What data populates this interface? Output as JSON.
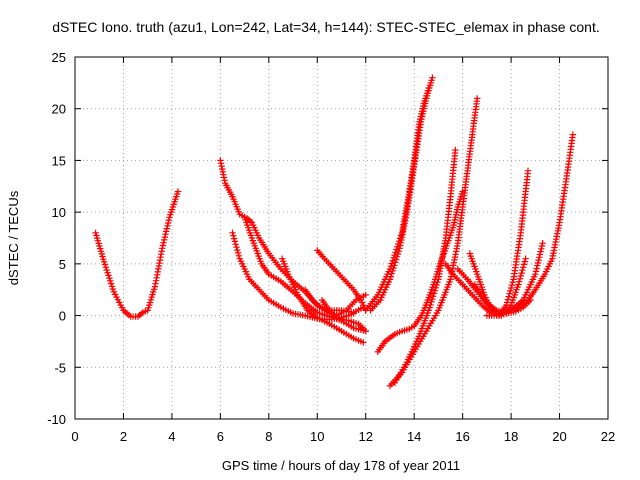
{
  "chart_data": {
    "type": "scatter",
    "title": "dSTEC Iono. truth (azu1, Lon=242, Lat=34, h=144): STEC-STEC_elemax in phase cont.",
    "xlabel": "GPS time / hours of day 178 of year 2011",
    "ylabel": "dSTEC  / TECUs",
    "xlim": [
      0,
      22
    ],
    "ylim": [
      -10,
      25
    ],
    "xticks": [
      0,
      2,
      4,
      6,
      8,
      10,
      12,
      14,
      16,
      18,
      20,
      22
    ],
    "yticks": [
      -10,
      -5,
      0,
      5,
      10,
      15,
      20,
      25
    ],
    "xtick_labels": [
      "0",
      "2",
      "4",
      "6",
      "8",
      "10",
      "12",
      "14",
      "16",
      "18",
      "20",
      "22"
    ],
    "ytick_labels": [
      "-10",
      "-5",
      "0",
      "5",
      "10",
      "15",
      "20",
      "25"
    ],
    "grid": true,
    "legend": "none",
    "marker": "+",
    "colors": {
      "series": "#ff0000",
      "grid": "#a0a0a0",
      "frame": "#000000"
    },
    "series": [
      {
        "x": [
          0.85,
          1.2,
          1.6,
          2.0,
          2.3,
          2.6,
          2.8,
          3.0,
          3.3,
          3.6,
          3.9,
          4.25
        ],
        "y": [
          8.0,
          5.2,
          2.3,
          0.5,
          -0.1,
          -0.1,
          0.3,
          0.5,
          2.8,
          6.5,
          9.5,
          12.0
        ]
      },
      {
        "x": [
          6.0,
          6.2,
          6.5,
          6.8,
          7.1,
          7.3,
          7.6,
          8.0,
          8.5,
          9.0,
          9.5,
          10.0,
          10.5,
          11.0,
          11.5,
          11.9
        ],
        "y": [
          15.0,
          12.8,
          11.5,
          9.8,
          9.4,
          9.0,
          7.5,
          6.0,
          4.5,
          3.3,
          2.3,
          1.0,
          0.5,
          0.5,
          0.3,
          0.8
        ]
      },
      {
        "x": [
          6.5,
          6.8,
          7.2,
          7.6,
          8.0,
          8.5,
          9.0,
          9.5,
          10.0,
          10.5,
          11.0,
          11.5
        ],
        "y": [
          8.0,
          5.5,
          3.5,
          2.5,
          1.5,
          0.8,
          0.2,
          0.0,
          -0.3,
          -0.4,
          -0.2,
          0.2
        ]
      },
      {
        "x": [
          7.0,
          7.3,
          7.7,
          8.0,
          8.5,
          9.0,
          9.5,
          10.0,
          10.5,
          11.0,
          11.5,
          12.0
        ],
        "y": [
          9.5,
          7.5,
          5.0,
          4.0,
          3.3,
          2.3,
          1.2,
          0.3,
          -0.1,
          -0.5,
          -1.2,
          -1.5
        ]
      },
      {
        "x": [
          8.55,
          8.8,
          9.2,
          9.6,
          10.0,
          10.5,
          11.0,
          11.5,
          11.9
        ],
        "y": [
          5.5,
          4.0,
          2.0,
          0.5,
          -0.2,
          -0.8,
          -1.5,
          -2.2,
          -2.6
        ]
      },
      {
        "x": [
          9.5,
          9.8,
          10.1,
          10.5,
          10.9,
          11.3,
          11.7,
          12.0
        ],
        "y": [
          2.5,
          1.5,
          0.8,
          0.2,
          -0.3,
          -0.5,
          -0.8,
          -1.5
        ]
      },
      {
        "x": [
          10.0,
          10.3,
          10.7,
          11.1,
          11.5,
          11.8,
          12.0
        ],
        "y": [
          6.3,
          5.5,
          4.5,
          3.5,
          2.5,
          1.5,
          0.5
        ]
      },
      {
        "x": [
          10.2,
          10.5,
          10.8,
          11.2,
          11.6,
          12.0
        ],
        "y": [
          1.5,
          0.5,
          0.0,
          0.5,
          1.5,
          2.0
        ]
      },
      {
        "x": [
          12.5,
          12.8,
          13.2,
          13.5,
          13.8,
          14.0,
          14.3,
          14.5
        ],
        "y": [
          -3.5,
          -2.5,
          -1.8,
          -1.5,
          -1.3,
          -1.0,
          0.0,
          1.0
        ]
      },
      {
        "x": [
          12.0,
          12.5,
          13.0,
          13.5,
          13.8,
          14.0,
          14.2,
          14.4,
          14.6
        ],
        "y": [
          0.5,
          2.0,
          4.5,
          8.0,
          12.0,
          15.0,
          18.5,
          20.5,
          22.0
        ]
      },
      {
        "x": [
          12.2,
          12.6,
          13.0,
          13.4,
          13.7,
          13.9,
          14.1,
          14.3,
          14.5,
          14.75
        ],
        "y": [
          0.5,
          1.5,
          3.5,
          6.5,
          10.0,
          13.0,
          16.0,
          19.0,
          21.0,
          23.0
        ]
      },
      {
        "x": [
          13.0,
          13.5,
          14.0,
          14.5,
          15.0,
          15.5,
          15.8,
          16.0,
          16.2,
          16.4,
          16.6
        ],
        "y": [
          -6.8,
          -5.5,
          -3.5,
          -1.5,
          0.5,
          3.5,
          7.0,
          10.5,
          14.0,
          17.5,
          21.0
        ]
      },
      {
        "x": [
          13.2,
          13.7,
          14.2,
          14.6,
          15.0,
          15.3,
          15.5,
          15.7
        ],
        "y": [
          -6.5,
          -4.5,
          -2.0,
          0.5,
          3.5,
          7.5,
          11.5,
          16.0
        ]
      },
      {
        "x": [
          14.4,
          14.8,
          15.0,
          15.3,
          15.6,
          15.8,
          16.0
        ],
        "y": [
          0.5,
          3.0,
          4.5,
          6.5,
          8.5,
          10.5,
          12.0
        ]
      },
      {
        "x": [
          15.3,
          15.6,
          16.0,
          16.4,
          16.8,
          17.2,
          17.6,
          18.0,
          18.5
        ],
        "y": [
          5.0,
          4.0,
          3.0,
          2.0,
          1.0,
          0.2,
          0.0,
          0.5,
          1.5
        ]
      },
      {
        "x": [
          15.8,
          16.2,
          16.6,
          17.0,
          17.4,
          17.8,
          18.2,
          18.5,
          18.8
        ],
        "y": [
          4.5,
          3.5,
          2.3,
          1.2,
          0.5,
          0.2,
          0.4,
          0.8,
          1.5
        ]
      },
      {
        "x": [
          16.3,
          16.6,
          16.9,
          17.2,
          17.5,
          17.8,
          18.1,
          18.4,
          18.7
        ],
        "y": [
          6.0,
          4.0,
          2.0,
          0.5,
          0.0,
          1.0,
          3.5,
          8.0,
          14.0
        ]
      },
      {
        "x": [
          16.5,
          16.9,
          17.3,
          17.7,
          18.0,
          18.3,
          18.6
        ],
        "y": [
          3.0,
          1.5,
          0.5,
          0.2,
          1.0,
          3.0,
          5.5
        ]
      },
      {
        "x": [
          17.0,
          17.5,
          18.0,
          18.5,
          19.0,
          19.3
        ],
        "y": [
          0.0,
          0.0,
          0.5,
          1.5,
          4.0,
          7.0
        ]
      },
      {
        "x": [
          18.2,
          18.7,
          19.0,
          19.4,
          19.7,
          20.0,
          20.3,
          20.55
        ],
        "y": [
          0.5,
          1.5,
          2.5,
          4.0,
          5.5,
          9.0,
          13.5,
          17.5
        ]
      }
    ]
  }
}
